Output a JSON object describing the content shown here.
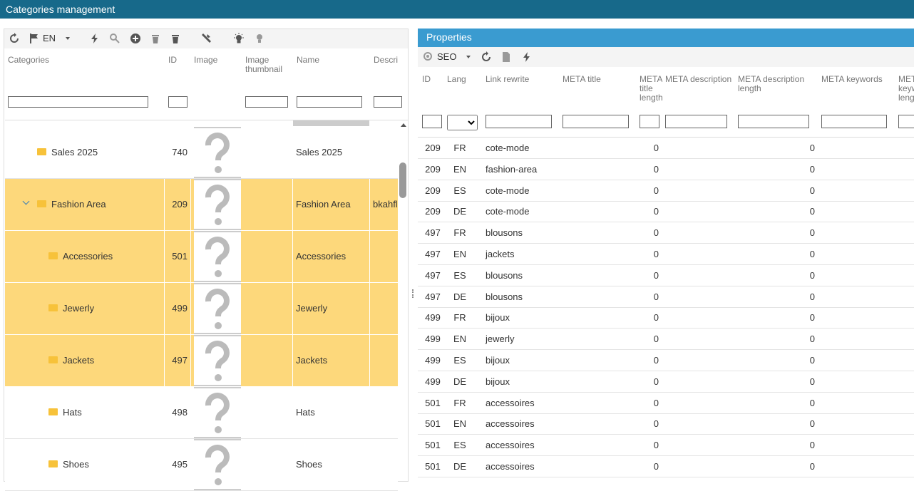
{
  "header": {
    "title": "Categories management"
  },
  "left": {
    "toolbar": {
      "lang": "EN"
    },
    "columns": [
      "Categories",
      "ID",
      "Image",
      "Image thumbnail",
      "Name",
      "Description"
    ],
    "rows": [
      {
        "category": "Sales 2025",
        "id": "740",
        "name": "Sales 2025",
        "description": null,
        "level": 0,
        "selected": false,
        "expanded": false
      },
      {
        "category": "Fashion Area",
        "id": "209",
        "name": "Fashion Area",
        "description": "bkahfls",
        "level": 0,
        "selected": true,
        "expanded": true
      },
      {
        "category": "Accessories",
        "id": "501",
        "name": "Accessories",
        "description": null,
        "level": 1,
        "selected": true,
        "expanded": false
      },
      {
        "category": "Jewerly",
        "id": "499",
        "name": "Jewerly",
        "description": null,
        "level": 1,
        "selected": true,
        "expanded": false
      },
      {
        "category": "Jackets",
        "id": "497",
        "name": "Jackets",
        "description": null,
        "level": 1,
        "selected": true,
        "expanded": false
      },
      {
        "category": "Hats",
        "id": "498",
        "name": "Hats",
        "description": null,
        "level": 1,
        "selected": false,
        "expanded": false
      },
      {
        "category": "Shoes",
        "id": "495",
        "name": "Shoes",
        "description": null,
        "level": 1,
        "selected": false,
        "expanded": false
      }
    ]
  },
  "right": {
    "title": "Properties",
    "toolbar": {
      "view": "SEO"
    },
    "columns": [
      "ID",
      "Lang",
      "Link rewrite",
      "META title",
      "META title length",
      "META description",
      "META description length",
      "META keywords",
      "META keywords length"
    ],
    "rows": [
      [
        "209",
        "FR",
        "cote-mode",
        "0",
        "0"
      ],
      [
        "209",
        "EN",
        "fashion-area",
        "0",
        "0"
      ],
      [
        "209",
        "ES",
        "cote-mode",
        "0",
        "0"
      ],
      [
        "209",
        "DE",
        "cote-mode",
        "0",
        "0"
      ],
      [
        "497",
        "FR",
        "blousons",
        "0",
        "0"
      ],
      [
        "497",
        "EN",
        "jackets",
        "0",
        "0"
      ],
      [
        "497",
        "ES",
        "blousons",
        "0",
        "0"
      ],
      [
        "497",
        "DE",
        "blousons",
        "0",
        "0"
      ],
      [
        "499",
        "FR",
        "bijoux",
        "0",
        "0"
      ],
      [
        "499",
        "EN",
        "jewerly",
        "0",
        "0"
      ],
      [
        "499",
        "ES",
        "bijoux",
        "0",
        "0"
      ],
      [
        "499",
        "DE",
        "bijoux",
        "0",
        "0"
      ],
      [
        "501",
        "FR",
        "accessoires",
        "0",
        "0"
      ],
      [
        "501",
        "EN",
        "accessoires",
        "0",
        "0"
      ],
      [
        "501",
        "ES",
        "accessoires",
        "0",
        "0"
      ],
      [
        "501",
        "DE",
        "accessoires",
        "0",
        "0"
      ]
    ]
  }
}
